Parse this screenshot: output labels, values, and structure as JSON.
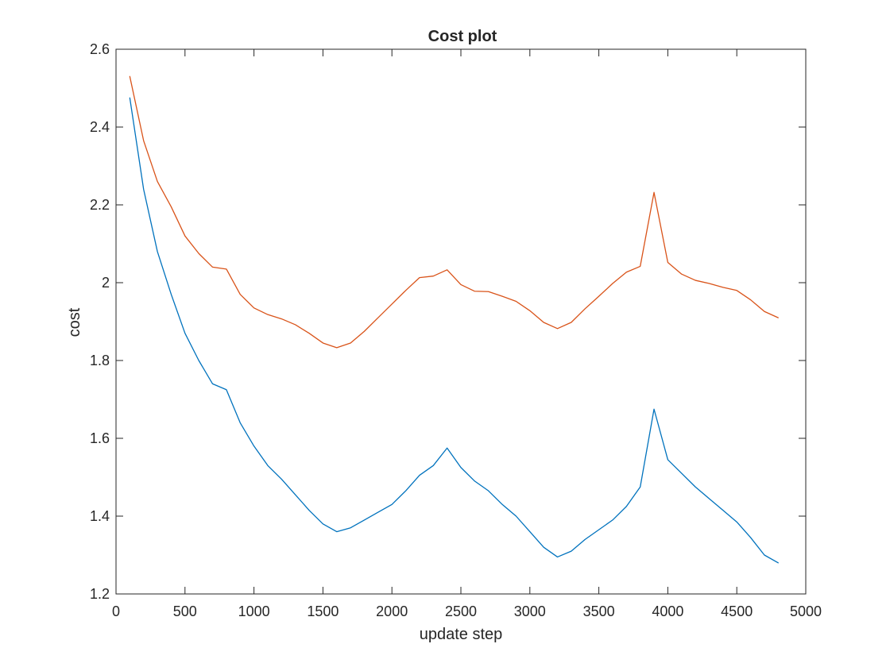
{
  "chart_data": {
    "type": "line",
    "title": "Cost plot",
    "xlabel": "update step",
    "ylabel": "cost",
    "xlim": [
      0,
      5000
    ],
    "ylim": [
      1.2,
      2.6
    ],
    "xticks": [
      0,
      500,
      1000,
      1500,
      2000,
      2500,
      3000,
      3500,
      4000,
      4500,
      5000
    ],
    "yticks": [
      1.2,
      1.4,
      1.6,
      1.8,
      2.0,
      2.2,
      2.4,
      2.6
    ],
    "ytick_labels": [
      "1.2",
      "1.4",
      "1.6",
      "1.8",
      "2",
      "2.2",
      "2.4",
      "2.6"
    ],
    "grid": false,
    "x": [
      100,
      200,
      300,
      400,
      500,
      600,
      700,
      800,
      900,
      1000,
      1100,
      1200,
      1300,
      1400,
      1500,
      1600,
      1700,
      1800,
      1900,
      2000,
      2100,
      2200,
      2300,
      2400,
      2500,
      2600,
      2700,
      2800,
      2900,
      3000,
      3100,
      3200,
      3300,
      3400,
      3500,
      3600,
      3700,
      3800,
      3900,
      4000,
      4100,
      4200,
      4300,
      4400,
      4500,
      4600,
      4700,
      4800
    ],
    "series": [
      {
        "color": "#0072BD",
        "values": [
          2.475,
          2.24,
          2.08,
          1.97,
          1.87,
          1.8,
          1.74,
          1.725,
          1.64,
          1.58,
          1.53,
          1.495,
          1.455,
          1.415,
          1.38,
          1.36,
          1.37,
          1.39,
          1.41,
          1.43,
          1.465,
          1.505,
          1.53,
          1.575,
          1.525,
          1.49,
          1.465,
          1.43,
          1.4,
          1.36,
          1.32,
          1.295,
          1.31,
          1.34,
          1.365,
          1.39,
          1.425,
          1.475,
          1.675,
          1.545,
          1.51,
          1.475,
          1.445,
          1.415,
          1.385,
          1.345,
          1.3,
          1.28
        ]
      },
      {
        "color": "#D95319",
        "values": [
          2.53,
          2.365,
          2.26,
          2.195,
          2.12,
          2.075,
          2.04,
          2.035,
          1.97,
          1.935,
          1.918,
          1.907,
          1.892,
          1.87,
          1.845,
          1.833,
          1.845,
          1.875,
          1.91,
          1.945,
          1.98,
          2.013,
          2.017,
          2.033,
          1.995,
          1.978,
          1.977,
          1.965,
          1.952,
          1.928,
          1.898,
          1.882,
          1.898,
          1.933,
          1.965,
          1.998,
          2.027,
          2.042,
          2.232,
          2.052,
          2.022,
          2.006,
          1.998,
          1.988,
          1.98,
          1.956,
          1.926,
          1.91
        ]
      }
    ]
  }
}
